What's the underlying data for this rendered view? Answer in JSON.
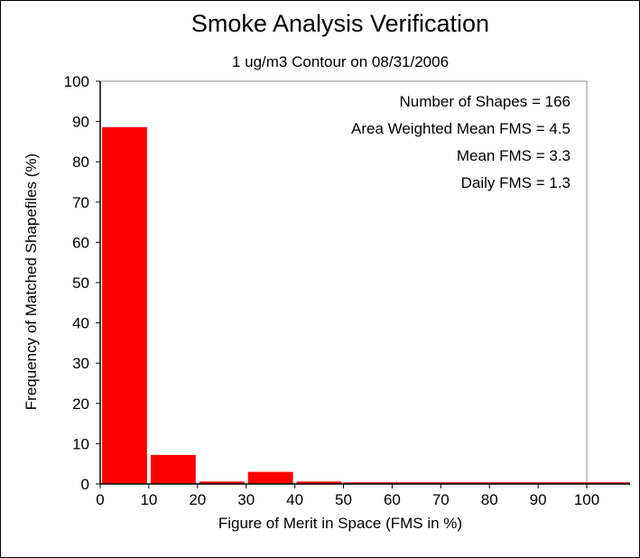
{
  "chart_data": {
    "type": "bar",
    "title": "Smoke Analysis Verification",
    "subtitle": "1 ug/m3 Contour on 08/31/2006",
    "xlabel": "Figure of Merit in Space (FMS in %)",
    "ylabel": "Frequency of Matched Shapefiles (%)",
    "xlim": [
      0,
      100
    ],
    "ylim": [
      0,
      100
    ],
    "xticks": [
      "0",
      "10",
      "20",
      "30",
      "40",
      "50",
      "60",
      "70",
      "80",
      "90",
      "100"
    ],
    "yticks": [
      "0",
      "10",
      "20",
      "30",
      "40",
      "50",
      "60",
      "70",
      "80",
      "90",
      "100"
    ],
    "bins": [
      {
        "start": 0,
        "end": 10,
        "value": 88.6
      },
      {
        "start": 10,
        "end": 20,
        "value": 7.2
      },
      {
        "start": 20,
        "end": 30,
        "value": 0.6
      },
      {
        "start": 30,
        "end": 40,
        "value": 3.0
      },
      {
        "start": 40,
        "end": 50,
        "value": 0.6
      },
      {
        "start": 50,
        "end": 60,
        "value": 0
      },
      {
        "start": 60,
        "end": 70,
        "value": 0
      },
      {
        "start": 70,
        "end": 80,
        "value": 0
      },
      {
        "start": 80,
        "end": 90,
        "value": 0
      },
      {
        "start": 90,
        "end": 100,
        "value": 0
      }
    ],
    "annotations": [
      "Number of Shapes = 166",
      "Area Weighted Mean FMS = 4.5",
      "Mean FMS = 3.3",
      "Daily FMS = 1.3"
    ],
    "bar_color": "#ff0000",
    "grid": false
  }
}
